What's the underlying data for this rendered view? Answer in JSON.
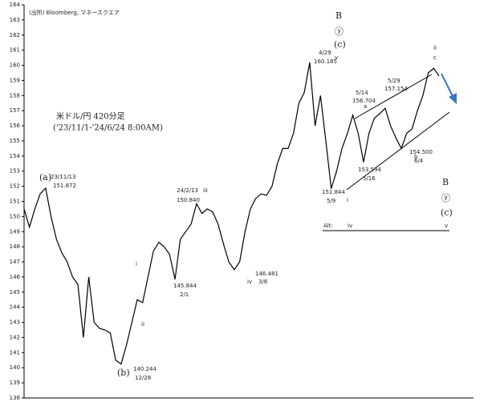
{
  "chart_data": {
    "type": "line",
    "source": "(出所) Bloomberg, マネースクエア",
    "title": "米ドル/円 420分足",
    "subtitle": "('23/11/1-'24/6/24 8:00AM)",
    "color": "#000000",
    "values": [
      150.5,
      149.3,
      150.5,
      151.5,
      151.872,
      150,
      148.5,
      147.6,
      147,
      146,
      145.5,
      142,
      146,
      143,
      142.6,
      142.5,
      142.3,
      140.5,
      140.244,
      141.5,
      143,
      144.5,
      144.3,
      146,
      147.7,
      148.3,
      148,
      147.5,
      145.844,
      148.5,
      149,
      149.5,
      150.84,
      150.2,
      150.5,
      150.3,
      149.5,
      148.2,
      147,
      146.481,
      147,
      149,
      150.5,
      151.2,
      151.5,
      151.4,
      152,
      153.5,
      154.5,
      154.5,
      155.5,
      157.5,
      158.2,
      160.185,
      156,
      158,
      155,
      151.844,
      153,
      154.5,
      155.5,
      156.704,
      155.5,
      153.594,
      155.5,
      156.5,
      156.8,
      157.154,
      156,
      155.2,
      154.5,
      155.5,
      155.8,
      157,
      158,
      159.5,
      159.8,
      159.3
    ],
    "ylim": [
      138,
      164
    ],
    "yticks": [
      138,
      139,
      140,
      141,
      142,
      143,
      144,
      145,
      146,
      147,
      148,
      149,
      150,
      151,
      152,
      153,
      154,
      155,
      156,
      157,
      158,
      159,
      160,
      161,
      162,
      163,
      164
    ],
    "annotations": [
      "(a)",
      "23/11/13",
      "151.872",
      "24/2/13",
      "150.840",
      "iii",
      "i",
      "145.844",
      "2/1",
      "ii",
      "(b)",
      "140.244",
      "12/28",
      "iv",
      "146.481",
      "3/8",
      "B",
      "ⓨ",
      "(c)",
      "v",
      "4/29",
      "160.185",
      "5/14",
      "156.704",
      "5/29",
      "157.154",
      "151.844",
      "5/9",
      "i",
      "153.594",
      "5/16",
      "154.500",
      "6/4",
      "ii",
      "c",
      "a",
      "b",
      "B",
      "ⓨ",
      "(c)",
      "Alt:",
      "iv",
      "v"
    ]
  }
}
